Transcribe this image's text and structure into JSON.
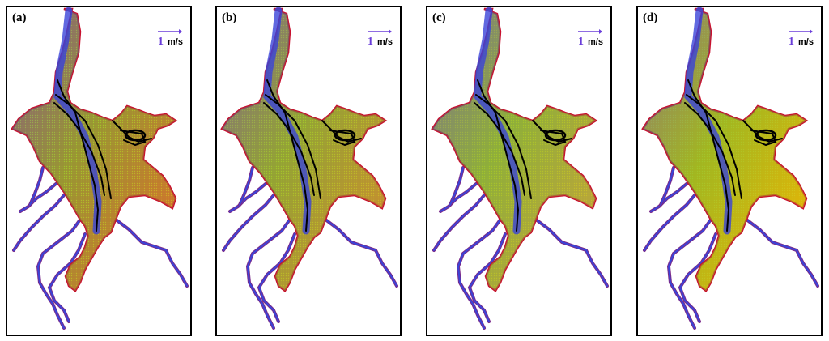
{
  "panels": [
    {
      "label": "(a)",
      "scale_value": "1",
      "scale_unit": "m/s",
      "tint": "#e06a2a"
    },
    {
      "label": "(b)",
      "scale_value": "1",
      "scale_unit": "m/s",
      "tint": "#d4882e"
    },
    {
      "label": "(c)",
      "scale_value": "1",
      "scale_unit": "m/s",
      "tint": "#c9a23a"
    },
    {
      "label": "(d)",
      "scale_value": "1",
      "scale_unit": "m/s",
      "tint": "#f4b400"
    }
  ],
  "colors": {
    "boundary": "#c8102e",
    "channel": "#3a44d8",
    "channel_outer": "#7a2a8a",
    "streamline": "#000000",
    "green": "#5fb83a",
    "yellow": "#f3d11a"
  }
}
